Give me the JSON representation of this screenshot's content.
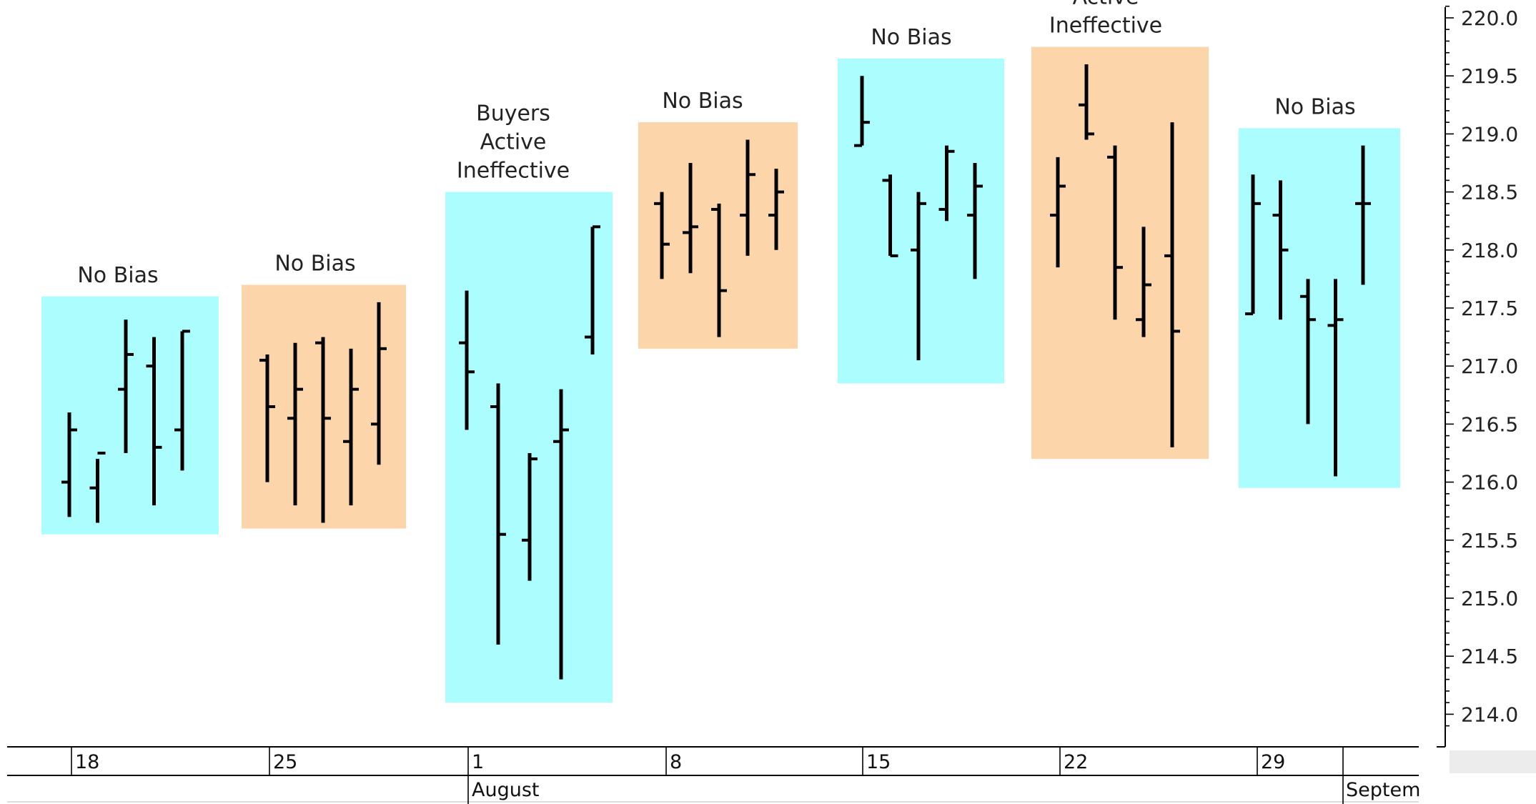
{
  "chart_data": {
    "type": "ohlc",
    "title": "",
    "xlabel": "",
    "ylabel": "",
    "ylim": [
      213.9,
      220.1
    ],
    "y_ticks": [
      "214.0",
      "214.5",
      "215.0",
      "215.5",
      "216.0",
      "216.5",
      "217.0",
      "217.5",
      "218.0",
      "218.5",
      "219.0",
      "219.5",
      "220.0"
    ],
    "x_week_labels": [
      "18",
      "25",
      "1",
      "8",
      "15",
      "22",
      "29"
    ],
    "x_month_labels": [
      "August",
      "Septem"
    ],
    "colors": {
      "no_bias": "#acfefe",
      "active": "#fcd5ab",
      "bar": "#000000",
      "axis": "#000000"
    },
    "weeks": [
      {
        "label": "No Bias",
        "color": "#acfefe",
        "box_range": [
          215.55,
          217.6
        ],
        "bars": [
          {
            "open": 216.0,
            "high": 216.6,
            "low": 215.7,
            "close": 216.45
          },
          {
            "open": 215.95,
            "high": 216.2,
            "low": 215.65,
            "close": 216.25
          },
          {
            "open": 216.8,
            "high": 217.4,
            "low": 216.25,
            "close": 217.1
          },
          {
            "open": 217.0,
            "high": 217.25,
            "low": 215.8,
            "close": 216.3
          },
          {
            "open": 216.45,
            "high": 217.3,
            "low": 216.1,
            "close": 217.3
          }
        ]
      },
      {
        "label": "No Bias",
        "color": "#fcd5ab",
        "box_range": [
          215.6,
          217.7
        ],
        "bars": [
          {
            "open": 217.05,
            "high": 217.1,
            "low": 216.0,
            "close": 216.65
          },
          {
            "open": 216.55,
            "high": 217.2,
            "low": 215.8,
            "close": 216.8
          },
          {
            "open": 217.2,
            "high": 217.25,
            "low": 215.65,
            "close": 216.55
          },
          {
            "open": 216.35,
            "high": 217.15,
            "low": 215.8,
            "close": 216.8
          },
          {
            "open": 216.5,
            "high": 217.55,
            "low": 216.15,
            "close": 217.15
          }
        ]
      },
      {
        "label": "Buyers Active Ineffective",
        "label_lines": [
          "Buyers",
          "Active",
          "Ineffective"
        ],
        "color": "#acfefe",
        "box_range": [
          214.1,
          218.5
        ],
        "bars": [
          {
            "open": 217.2,
            "high": 217.65,
            "low": 216.45,
            "close": 216.95
          },
          {
            "open": 216.65,
            "high": 216.85,
            "low": 214.6,
            "close": 215.55
          },
          {
            "open": 215.5,
            "high": 216.25,
            "low": 215.15,
            "close": 216.2
          },
          {
            "open": 216.35,
            "high": 216.8,
            "low": 214.3,
            "close": 216.45
          },
          {
            "open": 217.25,
            "high": 218.2,
            "low": 217.1,
            "close": 218.2
          }
        ]
      },
      {
        "label": "No Bias",
        "color": "#fcd5ab",
        "box_range": [
          217.15,
          219.1
        ],
        "bars": [
          {
            "open": 218.4,
            "high": 218.5,
            "low": 217.75,
            "close": 218.05
          },
          {
            "open": 218.15,
            "high": 218.75,
            "low": 217.8,
            "close": 218.2
          },
          {
            "open": 218.35,
            "high": 218.4,
            "low": 217.25,
            "close": 217.65
          },
          {
            "open": 218.3,
            "high": 218.95,
            "low": 217.95,
            "close": 218.65
          },
          {
            "open": 218.3,
            "high": 218.7,
            "low": 218.0,
            "close": 218.5
          }
        ]
      },
      {
        "label": "No Bias",
        "color": "#acfefe",
        "box_range": [
          216.85,
          219.65
        ],
        "bars": [
          {
            "open": 218.9,
            "high": 219.5,
            "low": 218.9,
            "close": 219.1
          },
          {
            "open": 218.6,
            "high": 218.65,
            "low": 217.95,
            "close": 217.95
          },
          {
            "open": 218.0,
            "high": 218.5,
            "low": 217.05,
            "close": 218.4
          },
          {
            "open": 218.35,
            "high": 218.9,
            "low": 218.25,
            "close": 218.85
          },
          {
            "open": 218.3,
            "high": 218.75,
            "low": 217.75,
            "close": 218.55
          }
        ]
      },
      {
        "label": "Active Ineffective",
        "label_lines": [
          "Active",
          "Ineffective"
        ],
        "color": "#fcd5ab",
        "box_range": [
          216.2,
          219.75
        ],
        "bars": [
          {
            "open": 218.3,
            "high": 218.8,
            "low": 217.85,
            "close": 218.55
          },
          {
            "open": 219.25,
            "high": 219.6,
            "low": 218.95,
            "close": 219.0
          },
          {
            "open": 218.8,
            "high": 218.9,
            "low": 217.4,
            "close": 217.85
          },
          {
            "open": 217.4,
            "high": 218.2,
            "low": 217.25,
            "close": 217.7
          },
          {
            "open": 217.95,
            "high": 219.1,
            "low": 216.3,
            "close": 217.3
          }
        ]
      },
      {
        "label": "No Bias",
        "color": "#acfefe",
        "box_range": [
          215.95,
          219.05
        ],
        "bars": [
          {
            "open": 217.45,
            "high": 218.65,
            "low": 217.45,
            "close": 218.4
          },
          {
            "open": 218.3,
            "high": 218.6,
            "low": 217.4,
            "close": 218.0
          },
          {
            "open": 217.6,
            "high": 217.75,
            "low": 216.5,
            "close": 217.4
          },
          {
            "open": 217.35,
            "high": 217.75,
            "low": 216.05,
            "close": 217.4
          },
          {
            "open": 218.4,
            "high": 218.9,
            "low": 217.7,
            "close": 218.4
          }
        ]
      }
    ]
  }
}
